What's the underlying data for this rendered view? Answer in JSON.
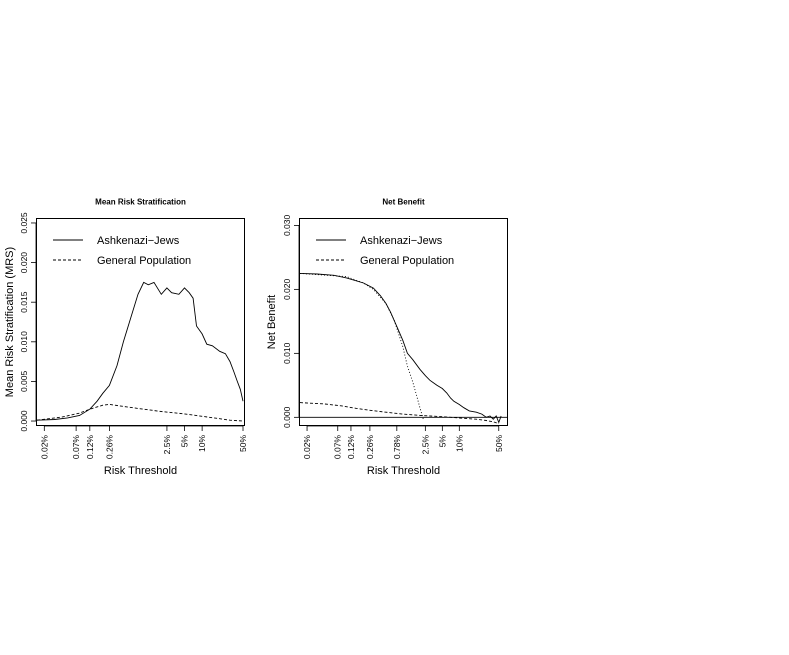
{
  "chart_data": [
    {
      "type": "line",
      "title": "Mean Risk Stratification",
      "xlabel": "Risk Threshold",
      "ylabel": "Mean Risk Stratification (MRS)",
      "x_scale": "log",
      "x_ticks": [
        {
          "value": 0.0002,
          "label": "0.02%"
        },
        {
          "value": 0.0007,
          "label": "0.07%"
        },
        {
          "value": 0.0012,
          "label": "0.12%"
        },
        {
          "value": 0.0026,
          "label": "0.26%"
        },
        {
          "value": 0.025,
          "label": "2.5%"
        },
        {
          "value": 0.05,
          "label": "5%"
        },
        {
          "value": 0.1,
          "label": "10%"
        },
        {
          "value": 0.5,
          "label": "50%"
        }
      ],
      "xlim": [
        0.00015,
        0.52
      ],
      "ylim": [
        -0.0005,
        0.0255
      ],
      "y_ticks": [
        {
          "value": 0,
          "label": "0.000"
        },
        {
          "value": 0.005,
          "label": "0.005"
        },
        {
          "value": 0.01,
          "label": "0.010"
        },
        {
          "value": 0.015,
          "label": "0.015"
        },
        {
          "value": 0.02,
          "label": "0.020"
        },
        {
          "value": 0.025,
          "label": "0.025"
        }
      ],
      "legend": {
        "position": "top-left"
      },
      "series": [
        {
          "name": "Ashkenazi−Jews",
          "style": "solid",
          "x": [
            0.00015,
            0.0003,
            0.0005,
            0.0008,
            0.0012,
            0.0016,
            0.002,
            0.0026,
            0.0035,
            0.0045,
            0.006,
            0.008,
            0.01,
            0.012,
            0.015,
            0.02,
            0.025,
            0.03,
            0.04,
            0.05,
            0.06,
            0.07,
            0.08,
            0.1,
            0.12,
            0.15,
            0.2,
            0.25,
            0.3,
            0.35,
            0.4,
            0.45,
            0.5
          ],
          "y": [
            0.0001,
            0.0002,
            0.0004,
            0.0007,
            0.0015,
            0.0025,
            0.0035,
            0.0045,
            0.007,
            0.01,
            0.013,
            0.016,
            0.0175,
            0.0172,
            0.0175,
            0.016,
            0.0168,
            0.0162,
            0.016,
            0.0168,
            0.0162,
            0.0155,
            0.012,
            0.011,
            0.0097,
            0.0095,
            0.0088,
            0.0085,
            0.0075,
            0.0062,
            0.005,
            0.004,
            0.0025
          ]
        },
        {
          "name": "General Population",
          "style": "dashed",
          "x": [
            0.00015,
            0.0004,
            0.0008,
            0.0012,
            0.002,
            0.0026,
            0.005,
            0.01,
            0.02,
            0.05,
            0.1,
            0.2,
            0.3,
            0.5
          ],
          "y": [
            0.0001,
            0.0005,
            0.001,
            0.0015,
            0.002,
            0.0021,
            0.0018,
            0.0015,
            0.0012,
            0.0009,
            0.0006,
            0.0003,
            0.0001,
            0.0
          ]
        }
      ]
    },
    {
      "type": "line",
      "title": "Net Benefit",
      "xlabel": "Risk Threshold",
      "ylabel": "Net Benefit",
      "x_scale": "log",
      "x_ticks": [
        {
          "value": 0.0002,
          "label": "0.02%"
        },
        {
          "value": 0.0007,
          "label": "0.07%"
        },
        {
          "value": 0.0012,
          "label": "0.12%"
        },
        {
          "value": 0.0026,
          "label": "0.26%"
        },
        {
          "value": 0.0078,
          "label": "0.78%"
        },
        {
          "value": 0.025,
          "label": "2.5%"
        },
        {
          "value": 0.05,
          "label": "5%"
        },
        {
          "value": 0.1,
          "label": "10%"
        },
        {
          "value": 0.5,
          "label": "50%"
        }
      ],
      "xlim": [
        0.00015,
        0.7
      ],
      "ylim": [
        -0.0012,
        0.031
      ],
      "y_ticks": [
        {
          "value": 0,
          "label": "0.000"
        },
        {
          "value": 0.01,
          "label": "0.010"
        },
        {
          "value": 0.02,
          "label": "0.020"
        },
        {
          "value": 0.03,
          "label": "0.030"
        }
      ],
      "reference_line": {
        "y": 0,
        "style": "solid"
      },
      "legend": {
        "position": "top-left"
      },
      "series": [
        {
          "name": "Ashkenazi−Jews",
          "style": "solid",
          "x": [
            0.00015,
            0.0003,
            0.0006,
            0.001,
            0.002,
            0.003,
            0.004,
            0.005,
            0.006,
            0.008,
            0.01,
            0.012,
            0.015,
            0.02,
            0.025,
            0.03,
            0.04,
            0.05,
            0.06,
            0.07,
            0.08,
            0.1,
            0.12,
            0.15,
            0.2,
            0.25,
            0.3,
            0.35,
            0.4,
            0.45,
            0.5,
            0.55
          ],
          "y": [
            0.0225,
            0.0224,
            0.0222,
            0.0218,
            0.021,
            0.0202,
            0.019,
            0.0178,
            0.0165,
            0.014,
            0.012,
            0.01,
            0.009,
            0.0075,
            0.0065,
            0.0058,
            0.005,
            0.0045,
            0.0038,
            0.003,
            0.0025,
            0.002,
            0.0015,
            0.001,
            0.0008,
            0.0005,
            0.0,
            0.0002,
            -0.0003,
            0.0002,
            -0.0008,
            0.0002
          ]
        },
        {
          "name": "General Population",
          "style": "dashed",
          "x": [
            0.00015,
            0.0004,
            0.0008,
            0.0015,
            0.0026,
            0.005,
            0.01,
            0.02,
            0.05,
            0.1,
            0.2,
            0.3,
            0.4,
            0.5
          ],
          "y": [
            0.0023,
            0.0021,
            0.0018,
            0.0014,
            0.0011,
            0.0008,
            0.0005,
            0.0003,
            0.0001,
            -0.0001,
            -0.0003,
            -0.0005,
            -0.0007,
            -0.001
          ]
        },
        {
          "name": "",
          "style": "dotted",
          "x": [
            0.00015,
            0.001,
            0.002,
            0.003,
            0.005,
            0.007,
            0.01,
            0.012,
            0.015,
            0.018,
            0.02,
            0.022,
            0.023
          ],
          "y": [
            0.0225,
            0.022,
            0.021,
            0.02,
            0.0178,
            0.0152,
            0.011,
            0.008,
            0.0055,
            0.003,
            0.0015,
            0.0003,
            -0.0003
          ]
        }
      ]
    }
  ]
}
